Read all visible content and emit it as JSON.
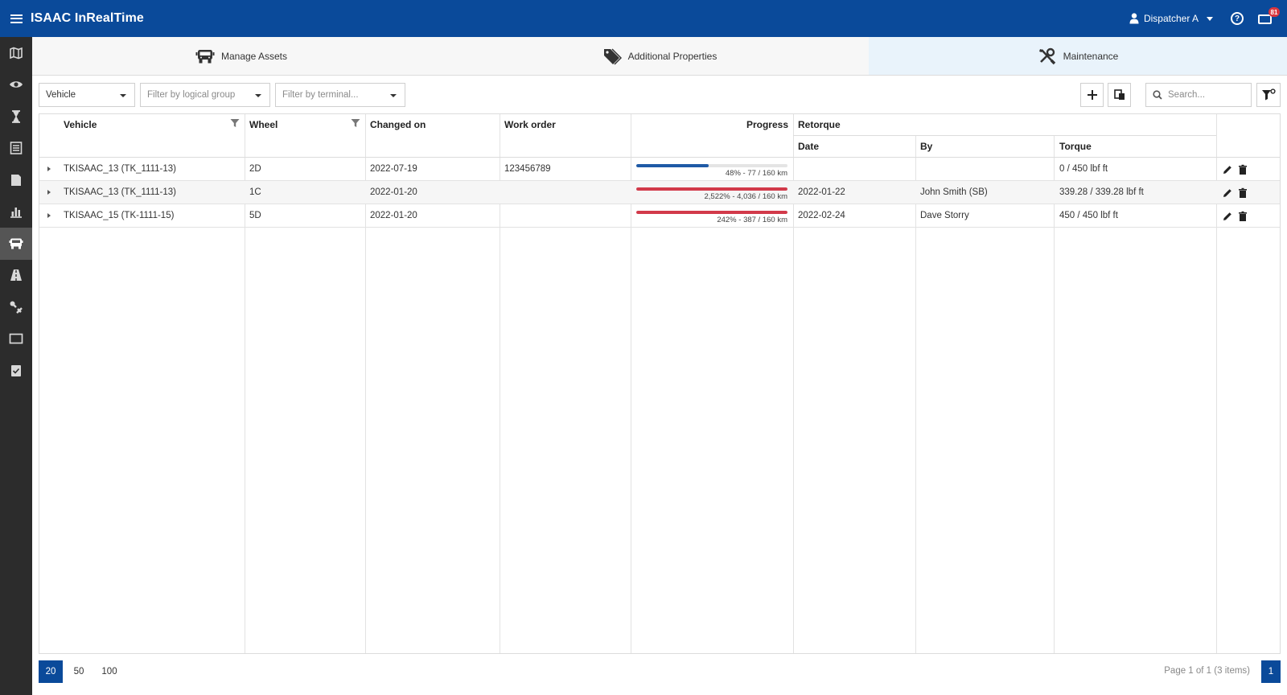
{
  "app": {
    "title": "ISAAC InRealTime"
  },
  "header": {
    "user": "Dispatcher A",
    "help_symbol": "?",
    "message_badge": "81"
  },
  "sidebar": {
    "items": [
      {
        "icon": "map-icon"
      },
      {
        "icon": "eye-icon"
      },
      {
        "icon": "hourglass-icon"
      },
      {
        "icon": "list-icon"
      },
      {
        "icon": "document-icon"
      },
      {
        "icon": "bar-chart-icon"
      },
      {
        "icon": "truck-icon",
        "active": true
      },
      {
        "icon": "road-icon"
      },
      {
        "icon": "tools-icon"
      },
      {
        "icon": "screen-icon"
      },
      {
        "icon": "checklist-icon"
      }
    ]
  },
  "tabs": [
    {
      "label": "Manage Assets",
      "icon": "truck-icon"
    },
    {
      "label": "Additional Properties",
      "icon": "tags-icon"
    },
    {
      "label": "Maintenance",
      "icon": "wrench-screwdriver-icon",
      "active": true
    }
  ],
  "toolbar": {
    "asset_type": "Vehicle",
    "logical_group_placeholder": "Filter by logical group",
    "terminal_placeholder": "Filter by terminal...",
    "search_placeholder": "Search..."
  },
  "grid": {
    "columns": {
      "vehicle": "Vehicle",
      "wheel": "Wheel",
      "changed_on": "Changed on",
      "work_order": "Work order",
      "progress": "Progress",
      "retorque": "Retorque",
      "date": "Date",
      "by": "By",
      "torque": "Torque"
    },
    "rows": [
      {
        "vehicle": "TKISAAC_13 (TK_1111-13)",
        "wheel": "2D",
        "changed_on": "2022-07-19",
        "work_order": "123456789",
        "progress_fraction": 0.48,
        "progress_color": "#1f5aa6",
        "progress_label": "48% - 77 / 160 km",
        "retorque_date": "",
        "retorque_by": "",
        "torque": "0 / 450 lbf ft"
      },
      {
        "vehicle": "TKISAAC_13 (TK_1111-13)",
        "wheel": "1C",
        "changed_on": "2022-01-20",
        "work_order": "",
        "progress_fraction": 1.0,
        "progress_color": "#d23a4a",
        "progress_label": "2,522% - 4,036 / 160 km",
        "retorque_date": "2022-01-22",
        "retorque_by": "John Smith (SB)",
        "torque": "339.28 / 339.28 lbf ft"
      },
      {
        "vehicle": "TKISAAC_15 (TK-1111-15)",
        "wheel": "5D",
        "changed_on": "2022-01-20",
        "work_order": "",
        "progress_fraction": 1.0,
        "progress_color": "#d23a4a",
        "progress_label": "242% - 387 / 160 km",
        "retorque_date": "2022-02-24",
        "retorque_by": "Dave Storry",
        "torque": "450 / 450 lbf ft"
      }
    ]
  },
  "pager": {
    "sizes": [
      "20",
      "50",
      "100"
    ],
    "active_size": "20",
    "info": "Page 1 of 1 (3 items)",
    "current_page": "1"
  },
  "colors": {
    "primary": "#0a4a9a",
    "sidebar": "#2c2c2c",
    "progress_ok": "#1f5aa6",
    "progress_over": "#d23a4a"
  }
}
